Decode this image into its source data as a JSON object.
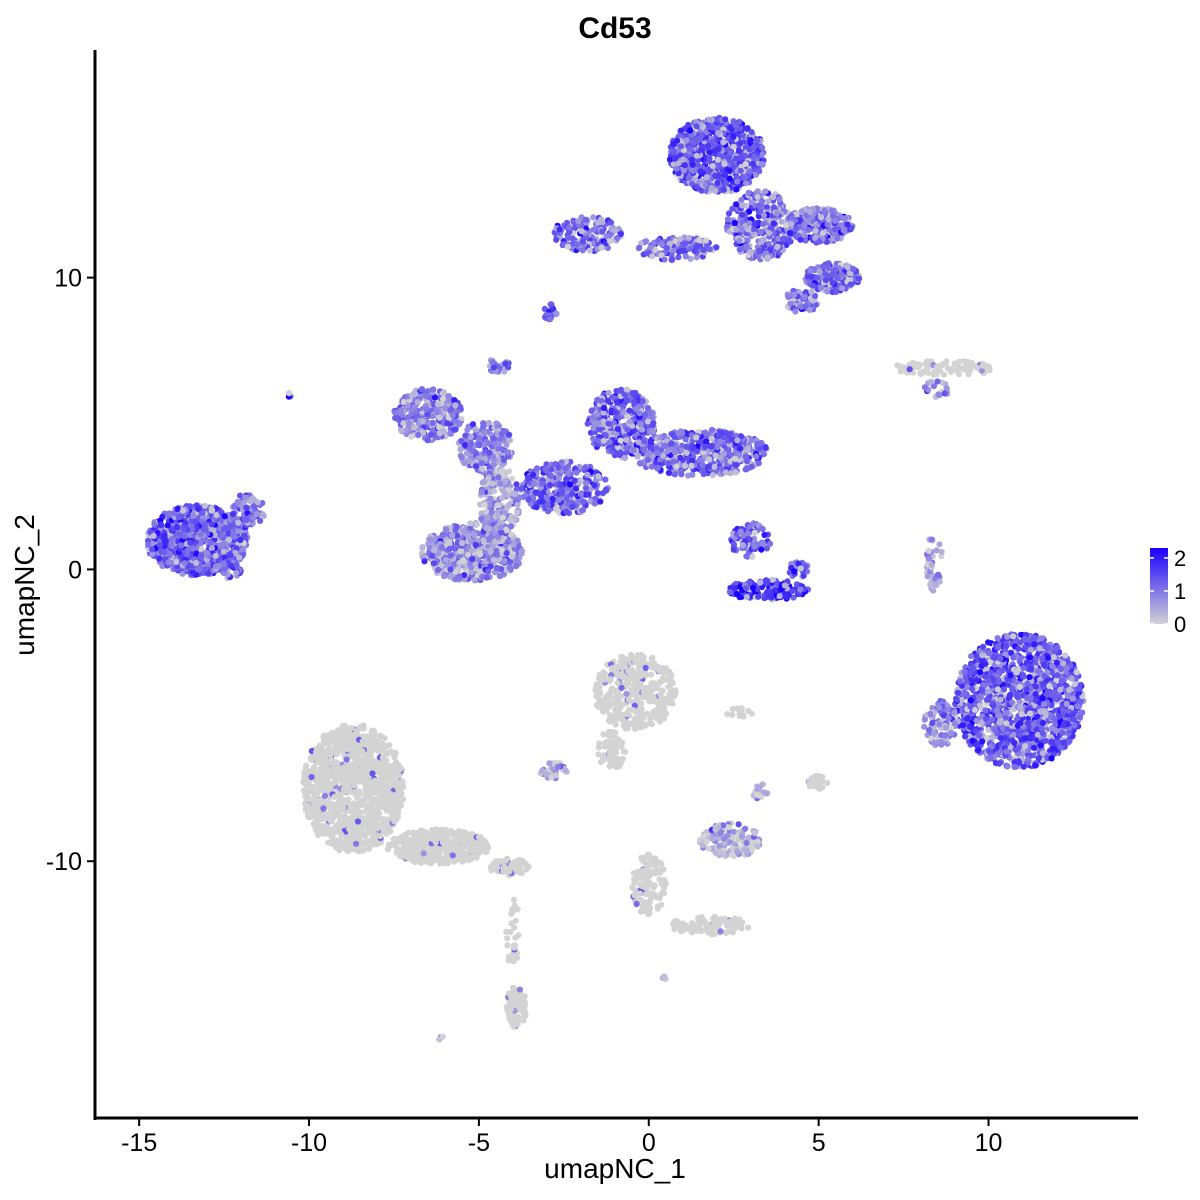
{
  "chart_data": {
    "type": "scatter",
    "title": "Cd53",
    "xlabel": "umapNC_1",
    "ylabel": "umapNC_2",
    "xlim": [
      -16.3,
      14.4
    ],
    "ylim": [
      -18.8,
      17.8
    ],
    "xticks": [
      -15,
      -10,
      -5,
      0,
      5,
      10
    ],
    "yticks": [
      -10,
      0,
      10
    ],
    "x_tick_labels": [
      "-15",
      "-10",
      "-5",
      "0",
      "5",
      "10"
    ],
    "y_tick_labels": [
      "-10",
      "0",
      "10"
    ],
    "grid": false,
    "legend": {
      "position": "right",
      "scale": "continuous",
      "min": 0,
      "max": 2.3,
      "ticks": [
        0,
        1,
        2
      ],
      "tick_labels": [
        "0",
        "1",
        "2"
      ],
      "low_color": "#d3d3d3",
      "high_color": "#1a00ff"
    },
    "clusters": [
      {
        "cx": -13.3,
        "cy": 1.0,
        "rx": 1.5,
        "ry": 1.2,
        "n": 900,
        "expr": 1.25
      },
      {
        "cx": -11.8,
        "cy": 2.0,
        "rx": 0.5,
        "ry": 0.6,
        "n": 80,
        "expr": 1.1
      },
      {
        "cx": -12.4,
        "cy": 0.0,
        "rx": 0.4,
        "ry": 0.3,
        "n": 40,
        "expr": 1.2
      },
      {
        "cx": -6.5,
        "cy": 5.3,
        "rx": 1.0,
        "ry": 0.9,
        "n": 300,
        "expr": 0.9
      },
      {
        "cx": -4.8,
        "cy": 4.2,
        "rx": 0.8,
        "ry": 0.9,
        "n": 200,
        "expr": 0.9
      },
      {
        "cx": -5.2,
        "cy": 0.6,
        "rx": 1.5,
        "ry": 1.0,
        "n": 500,
        "expr": 0.8
      },
      {
        "cx": -4.4,
        "cy": 2.3,
        "rx": 0.6,
        "ry": 1.2,
        "n": 200,
        "expr": 0.7
      },
      {
        "cx": -2.5,
        "cy": 2.8,
        "rx": 1.3,
        "ry": 0.9,
        "n": 300,
        "expr": 1.2
      },
      {
        "cx": -0.8,
        "cy": 5.0,
        "rx": 1.0,
        "ry": 1.2,
        "n": 400,
        "expr": 1.3
      },
      {
        "cx": 1.5,
        "cy": 4.0,
        "rx": 2.0,
        "ry": 0.8,
        "n": 500,
        "expr": 1.2
      },
      {
        "cx": -4.4,
        "cy": 7.0,
        "rx": 0.3,
        "ry": 0.3,
        "n": 30,
        "expr": 1.0
      },
      {
        "cx": -1.8,
        "cy": 11.5,
        "rx": 1.0,
        "ry": 0.6,
        "n": 150,
        "expr": 1.2
      },
      {
        "cx": 0.8,
        "cy": 11.0,
        "rx": 1.2,
        "ry": 0.4,
        "n": 120,
        "expr": 1.1
      },
      {
        "cx": 2.0,
        "cy": 14.2,
        "rx": 1.4,
        "ry": 1.3,
        "n": 700,
        "expr": 1.35
      },
      {
        "cx": 3.3,
        "cy": 11.8,
        "rx": 1.0,
        "ry": 1.2,
        "n": 300,
        "expr": 1.1
      },
      {
        "cx": 5.0,
        "cy": 11.8,
        "rx": 1.0,
        "ry": 0.6,
        "n": 250,
        "expr": 1.1
      },
      {
        "cx": 5.4,
        "cy": 10.0,
        "rx": 0.8,
        "ry": 0.5,
        "n": 200,
        "expr": 1.15
      },
      {
        "cx": 4.5,
        "cy": 9.2,
        "rx": 0.5,
        "ry": 0.4,
        "n": 60,
        "expr": 1.1
      },
      {
        "cx": -2.9,
        "cy": 8.8,
        "rx": 0.2,
        "ry": 0.3,
        "n": 20,
        "expr": 1.3
      },
      {
        "cx": 3.0,
        "cy": 1.0,
        "rx": 0.6,
        "ry": 0.6,
        "n": 80,
        "expr": 1.3
      },
      {
        "cx": 3.5,
        "cy": -0.7,
        "rx": 1.2,
        "ry": 0.35,
        "n": 150,
        "expr": 1.8
      },
      {
        "cx": 4.4,
        "cy": 0.0,
        "rx": 0.3,
        "ry": 0.3,
        "n": 30,
        "expr": 1.3
      },
      {
        "cx": 8.4,
        "cy": 0.2,
        "rx": 0.25,
        "ry": 1.0,
        "n": 40,
        "expr": 0.6
      },
      {
        "cx": 10.9,
        "cy": -4.5,
        "rx": 1.9,
        "ry": 2.3,
        "n": 1400,
        "expr": 1.35
      },
      {
        "cx": 8.6,
        "cy": -5.3,
        "rx": 0.5,
        "ry": 0.8,
        "n": 100,
        "expr": 0.8
      },
      {
        "cx": 8.8,
        "cy": 6.9,
        "rx": 1.6,
        "ry": 0.25,
        "n": 90,
        "expr": 0.1
      },
      {
        "cx": 8.5,
        "cy": 6.2,
        "rx": 0.4,
        "ry": 0.3,
        "n": 20,
        "expr": 0.8
      },
      {
        "cx": -0.4,
        "cy": -4.2,
        "rx": 1.2,
        "ry": 1.3,
        "n": 350,
        "expr": 0.08
      },
      {
        "cx": -1.1,
        "cy": -6.2,
        "rx": 0.4,
        "ry": 0.7,
        "n": 60,
        "expr": 0.05
      },
      {
        "cx": -2.8,
        "cy": -6.9,
        "rx": 0.4,
        "ry": 0.3,
        "n": 40,
        "expr": 0.4
      },
      {
        "cx": -8.7,
        "cy": -7.5,
        "rx": 1.5,
        "ry": 2.2,
        "n": 1100,
        "expr": 0.03
      },
      {
        "cx": -6.2,
        "cy": -9.5,
        "rx": 1.5,
        "ry": 0.6,
        "n": 350,
        "expr": 0.02
      },
      {
        "cx": -4.1,
        "cy": -10.2,
        "rx": 0.6,
        "ry": 0.3,
        "n": 60,
        "expr": 0.02
      },
      {
        "cx": -3.9,
        "cy": -15.0,
        "rx": 0.3,
        "ry": 0.7,
        "n": 80,
        "expr": 0.05
      },
      {
        "cx": -4.0,
        "cy": -12.5,
        "rx": 0.2,
        "ry": 1.2,
        "n": 30,
        "expr": 0.0
      },
      {
        "cx": 2.4,
        "cy": -9.3,
        "rx": 0.9,
        "ry": 0.6,
        "n": 150,
        "expr": 0.35
      },
      {
        "cx": 0.0,
        "cy": -10.8,
        "rx": 0.5,
        "ry": 1.1,
        "n": 120,
        "expr": 0.05
      },
      {
        "cx": 1.8,
        "cy": -12.2,
        "rx": 1.2,
        "ry": 0.3,
        "n": 100,
        "expr": 0.03
      },
      {
        "cx": 5.0,
        "cy": -7.3,
        "rx": 0.3,
        "ry": 0.25,
        "n": 25,
        "expr": 0.1
      },
      {
        "cx": 3.3,
        "cy": -7.6,
        "rx": 0.25,
        "ry": 0.3,
        "n": 15,
        "expr": 0.3
      },
      {
        "cx": 2.7,
        "cy": -4.9,
        "rx": 0.5,
        "ry": 0.15,
        "n": 12,
        "expr": 0.1
      },
      {
        "cx": -10.6,
        "cy": 6.0,
        "rx": 0.1,
        "ry": 0.1,
        "n": 4,
        "expr": 1.0
      },
      {
        "cx": -6.1,
        "cy": -16.1,
        "rx": 0.1,
        "ry": 0.1,
        "n": 3,
        "expr": 0.6
      },
      {
        "cx": 0.5,
        "cy": -14.0,
        "rx": 0.1,
        "ry": 0.1,
        "n": 3,
        "expr": 0.5
      }
    ]
  }
}
